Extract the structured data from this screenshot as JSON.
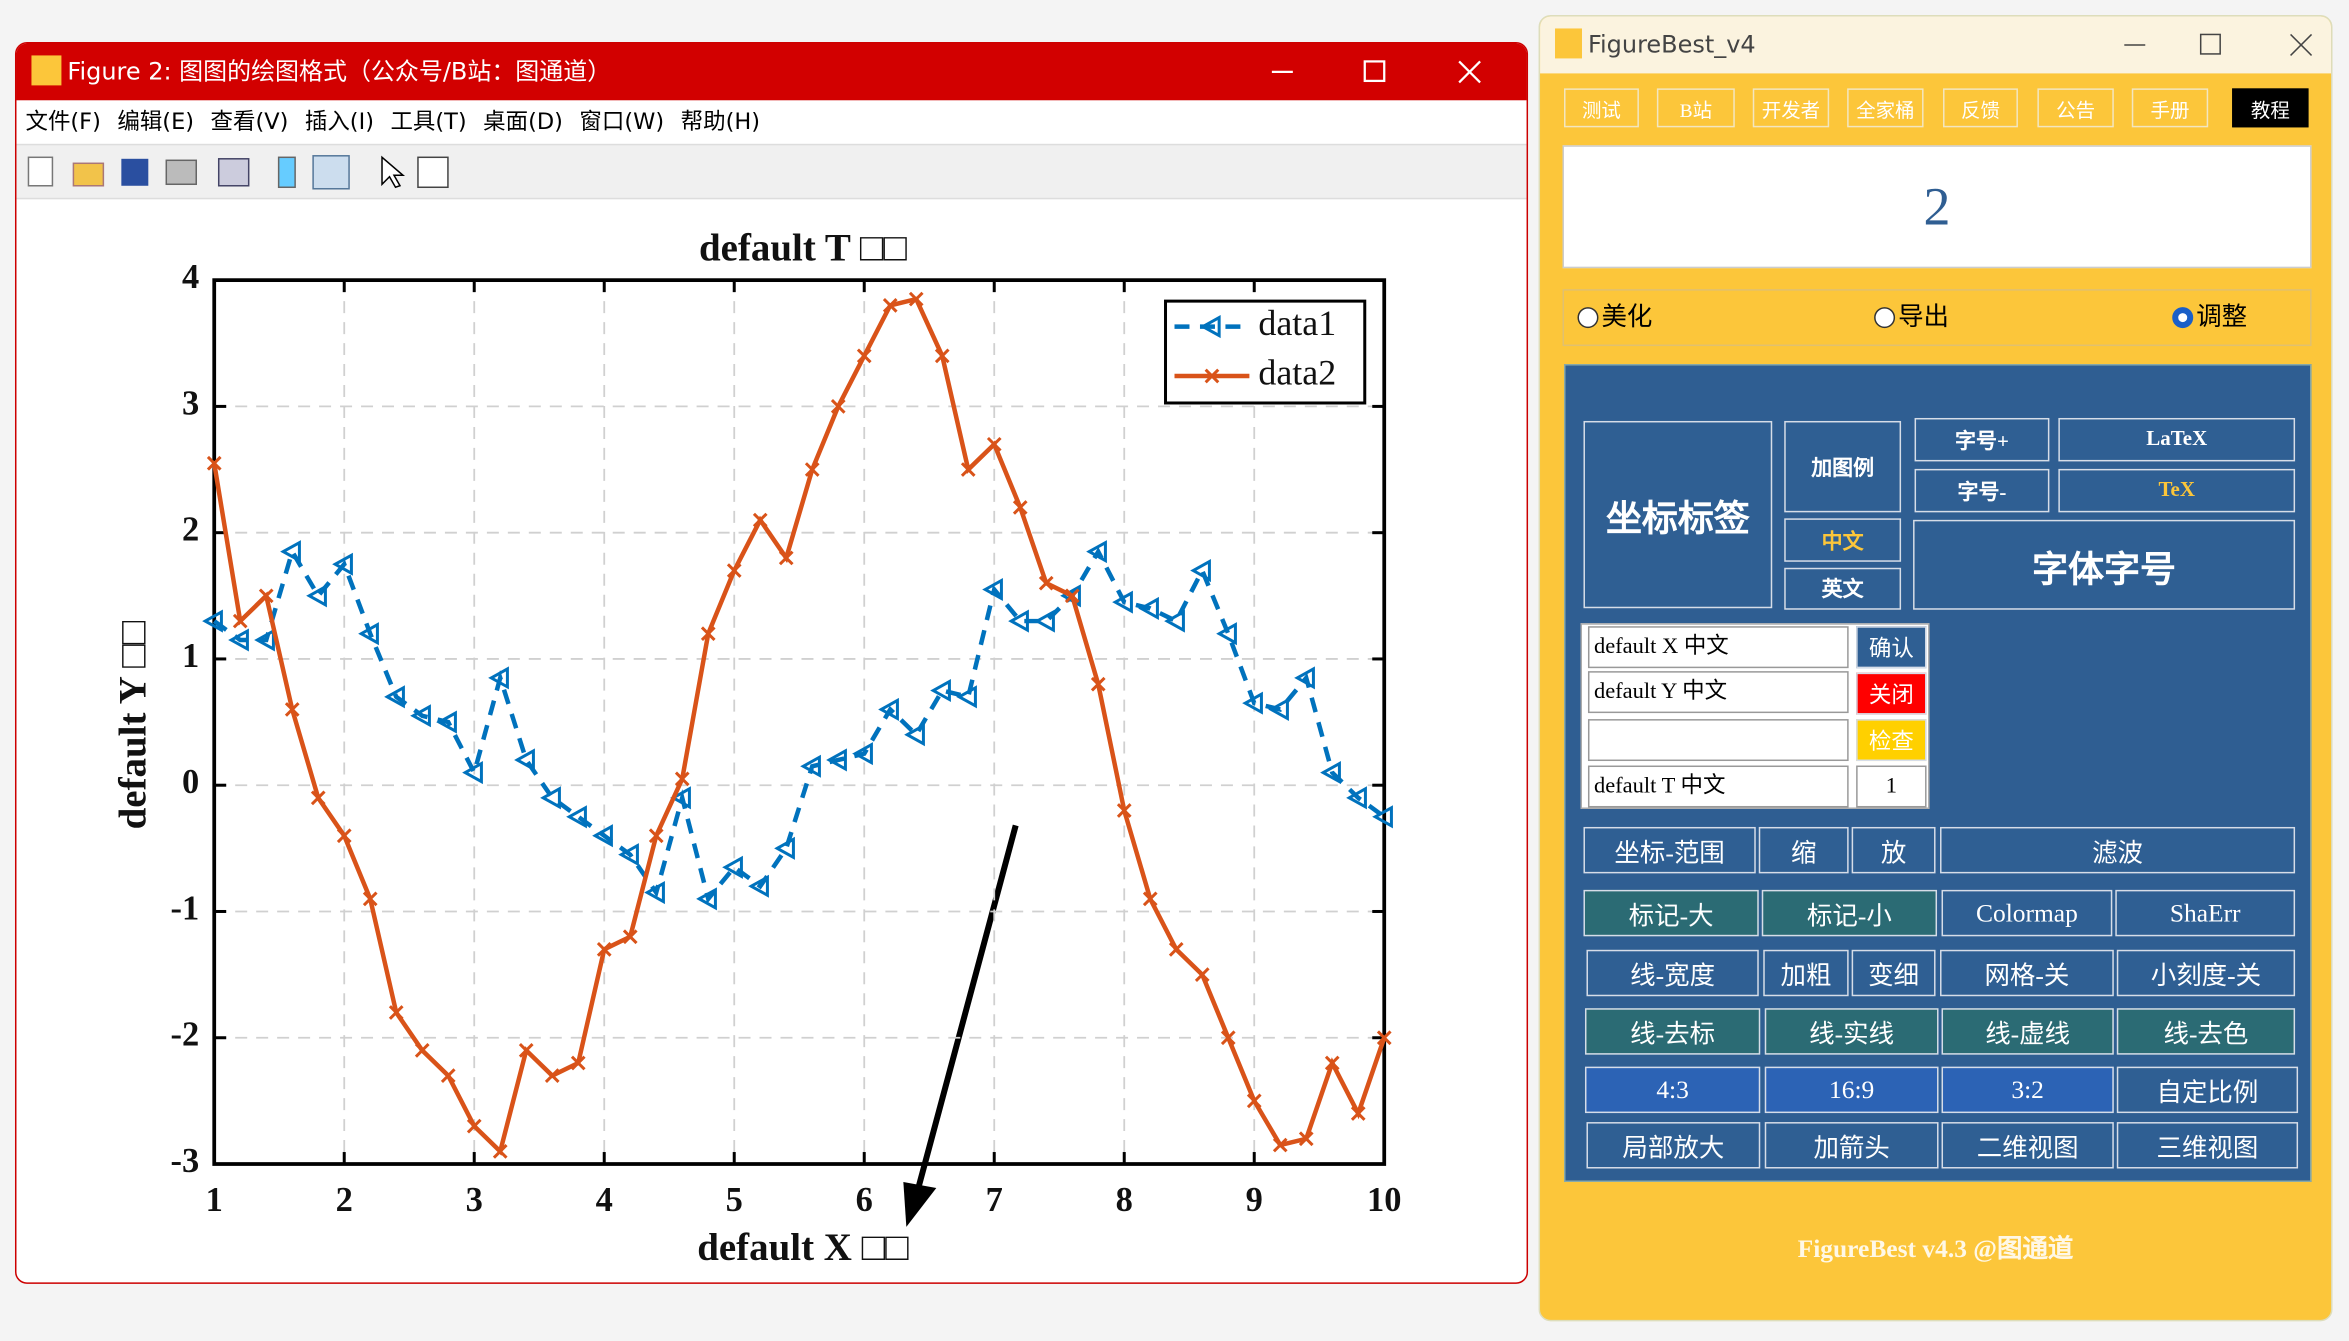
{
  "figure_window": {
    "title": "Figure 2: 图图的绘图格式（公众号/B站：图通道）",
    "menu": [
      "文件(F)",
      "编辑(E)",
      "查看(V)",
      "插入(I)",
      "工具(T)",
      "桌面(D)",
      "窗口(W)",
      "帮助(H)"
    ]
  },
  "chart_data": {
    "type": "line",
    "title": "default T □□",
    "x_label": "default X □□",
    "y_label": "default Y □□",
    "x": [
      1.0,
      1.2,
      1.4,
      1.6,
      1.8,
      2.0,
      2.2,
      2.4,
      2.6,
      2.8,
      3.0,
      3.2,
      3.4,
      3.6,
      3.8,
      4.0,
      4.2,
      4.4,
      4.6,
      4.8,
      5.0,
      5.2,
      5.4,
      5.6,
      5.8,
      6.0,
      6.2,
      6.4,
      6.6,
      6.8,
      7.0,
      7.2,
      7.4,
      7.6,
      7.8,
      8.0,
      8.2,
      8.4,
      8.6,
      8.8,
      9.0,
      9.2,
      9.4,
      9.6,
      9.8,
      10.0
    ],
    "series": [
      {
        "name": "data1",
        "color": "#0072bd",
        "line_style": "dashed",
        "marker": "triangle-left",
        "values": [
          1.3,
          1.15,
          1.15,
          1.85,
          1.5,
          1.75,
          1.2,
          0.7,
          0.55,
          0.5,
          0.1,
          0.85,
          0.2,
          -0.1,
          -0.25,
          -0.4,
          -0.55,
          -0.85,
          -0.1,
          -0.9,
          -0.65,
          -0.8,
          -0.5,
          0.15,
          0.2,
          0.25,
          0.6,
          0.4,
          0.75,
          0.7,
          1.55,
          1.3,
          1.3,
          1.5,
          1.85,
          1.45,
          1.4,
          1.3,
          1.7,
          1.2,
          0.65,
          0.6,
          0.85,
          0.1,
          -0.1,
          -0.25
        ]
      },
      {
        "name": "data2",
        "color": "#d95319",
        "line_style": "solid",
        "marker": "x",
        "values": [
          2.55,
          1.3,
          1.5,
          0.6,
          -0.1,
          -0.4,
          -0.9,
          -1.8,
          -2.1,
          -2.3,
          -2.7,
          -2.9,
          -2.1,
          -2.3,
          -2.2,
          -1.3,
          -1.2,
          -0.4,
          0.05,
          1.2,
          1.7,
          2.1,
          1.8,
          2.5,
          3.0,
          3.4,
          3.8,
          3.85,
          3.4,
          2.5,
          2.7,
          2.2,
          1.6,
          1.5,
          0.8,
          -0.2,
          -0.9,
          -1.3,
          -1.5,
          -2.0,
          -2.5,
          -2.85,
          -2.8,
          -2.2,
          -2.6,
          -2.0
        ]
      }
    ],
    "xlim": [
      1,
      10
    ],
    "ylim": [
      -3,
      4
    ],
    "xticks": [
      1,
      2,
      3,
      4,
      5,
      6,
      7,
      8,
      9,
      10
    ],
    "yticks": [
      -3,
      -2,
      -1,
      0,
      1,
      2,
      3,
      4
    ],
    "grid": true,
    "legend": "northeast"
  },
  "figurebest": {
    "title": "FigureBest_v4",
    "tabs": [
      "测试",
      "B站",
      "开发者",
      "全家桶",
      "反馈",
      "公告",
      "手册",
      "教程"
    ],
    "display": "2",
    "modes": [
      "美化",
      "导出",
      "调整"
    ],
    "panel": {
      "axis_label": "坐标标签",
      "add_legend": "加图例",
      "chinese": "中文",
      "english": "英文",
      "font_plus": "字号+",
      "font_minus": "字号-",
      "latex": "LaTeX",
      "tex": "TeX",
      "font": "字体字号",
      "input_x": "default X 中文",
      "input_y": "default Y 中文",
      "input_t": "default T 中文",
      "confirm": "确认",
      "close": "关闭",
      "check": "检查",
      "count": "1",
      "rows": [
        [
          "坐标-范围",
          "缩",
          "放",
          "滤波"
        ],
        [
          "标记-大",
          "标记-小",
          "Colormap",
          "ShaErr"
        ],
        [
          "线-宽度",
          "加粗",
          "变细",
          "网格-关",
          "小刻度-关"
        ],
        [
          "线-去标",
          "线-实线",
          "线-虚线",
          "线-去色"
        ],
        [
          "4:3",
          "16:9",
          "3:2",
          "自定比例"
        ],
        [
          "局部放大",
          "加箭头",
          "二维视图",
          "三维视图"
        ]
      ]
    },
    "footer": "FigureBest v4.3 @图通道"
  }
}
